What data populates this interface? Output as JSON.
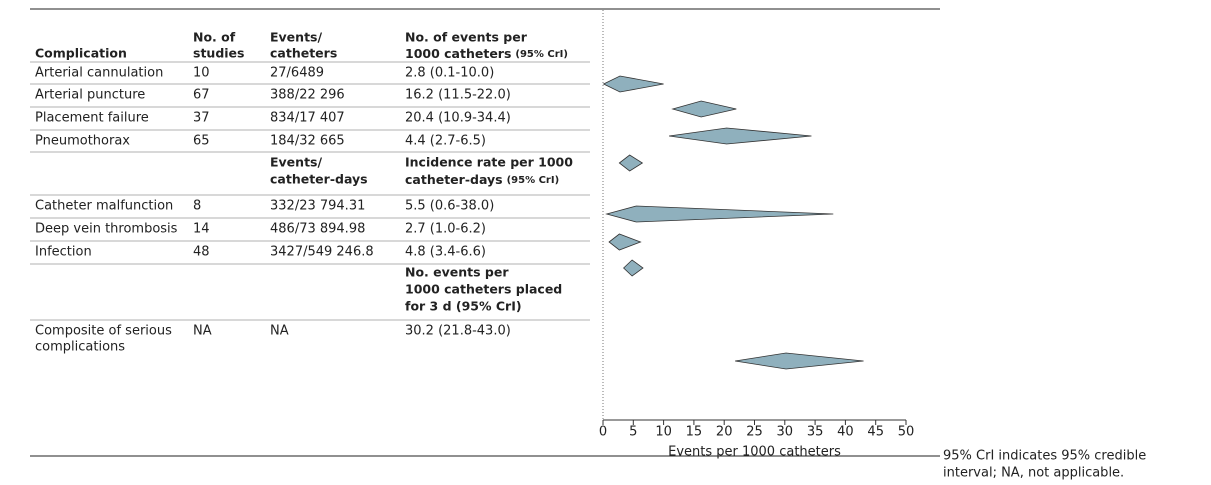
{
  "chart_data": {
    "type": "forest",
    "columns": {
      "complication": "Complication",
      "studies": [
        "No. of",
        "studies"
      ]
    },
    "sections": [
      {
        "events_header": [
          "Events/",
          "catheters"
        ],
        "estimate_header": [
          "No. of events per",
          "1000 catheters"
        ],
        "estimate_note": "(95% CrI)",
        "rows": [
          {
            "name": [
              "Arterial cannulation"
            ],
            "studies": 10,
            "events": "27/6489",
            "estimate": 2.8,
            "lower": 0.1,
            "upper": 10.0,
            "label": "2.8 (0.1-10.0)"
          },
          {
            "name": [
              "Arterial puncture"
            ],
            "studies": 67,
            "events": "388/22 296",
            "estimate": 16.2,
            "lower": 11.5,
            "upper": 22.0,
            "label": "16.2 (11.5-22.0)"
          },
          {
            "name": [
              "Placement failure"
            ],
            "studies": 37,
            "events": "834/17 407",
            "estimate": 20.4,
            "lower": 10.9,
            "upper": 34.4,
            "label": "20.4 (10.9-34.4)"
          },
          {
            "name": [
              "Pneumothorax"
            ],
            "studies": 65,
            "events": "184/32 665",
            "estimate": 4.4,
            "lower": 2.7,
            "upper": 6.5,
            "label": "4.4 (2.7-6.5)"
          }
        ]
      },
      {
        "events_header": [
          "Events/",
          "catheter-days"
        ],
        "estimate_header": [
          "Incidence rate per 1000",
          "catheter-days"
        ],
        "estimate_note": "(95% CrI)",
        "rows": [
          {
            "name": [
              "Catheter malfunction"
            ],
            "studies": 8,
            "events": "332/23 794.31",
            "estimate": 5.5,
            "lower": 0.6,
            "upper": 38.0,
            "label": "5.5 (0.6-38.0)"
          },
          {
            "name": [
              "Deep vein thrombosis"
            ],
            "studies": 14,
            "events": "486/73 894.98",
            "estimate": 2.7,
            "lower": 1.0,
            "upper": 6.2,
            "label": "2.7 (1.0-6.2)"
          },
          {
            "name": [
              "Infection"
            ],
            "studies": 48,
            "events": "3427/549 246.8",
            "estimate": 4.8,
            "lower": 3.4,
            "upper": 6.6,
            "label": "4.8 (3.4-6.6)"
          }
        ]
      },
      {
        "estimate_header": [
          "No. events per",
          "1000 catheters placed",
          "for 3 d (95% CrI)"
        ],
        "rows": [
          {
            "name": [
              "Composite of serious",
              "complications"
            ],
            "studies": "NA",
            "events": "NA",
            "estimate": 30.2,
            "lower": 21.8,
            "upper": 43.0,
            "label": "30.2 (21.8-43.0)"
          }
        ]
      }
    ],
    "x_label": "Events per 1000 catheters",
    "xlim": [
      0,
      50
    ],
    "xticks": [
      0,
      5,
      10,
      15,
      20,
      25,
      30,
      35,
      40,
      45,
      50
    ],
    "color": "#8fb0bd",
    "footnote": [
      "95% CrI indicates 95% credible",
      "interval; NA, not applicable."
    ]
  }
}
